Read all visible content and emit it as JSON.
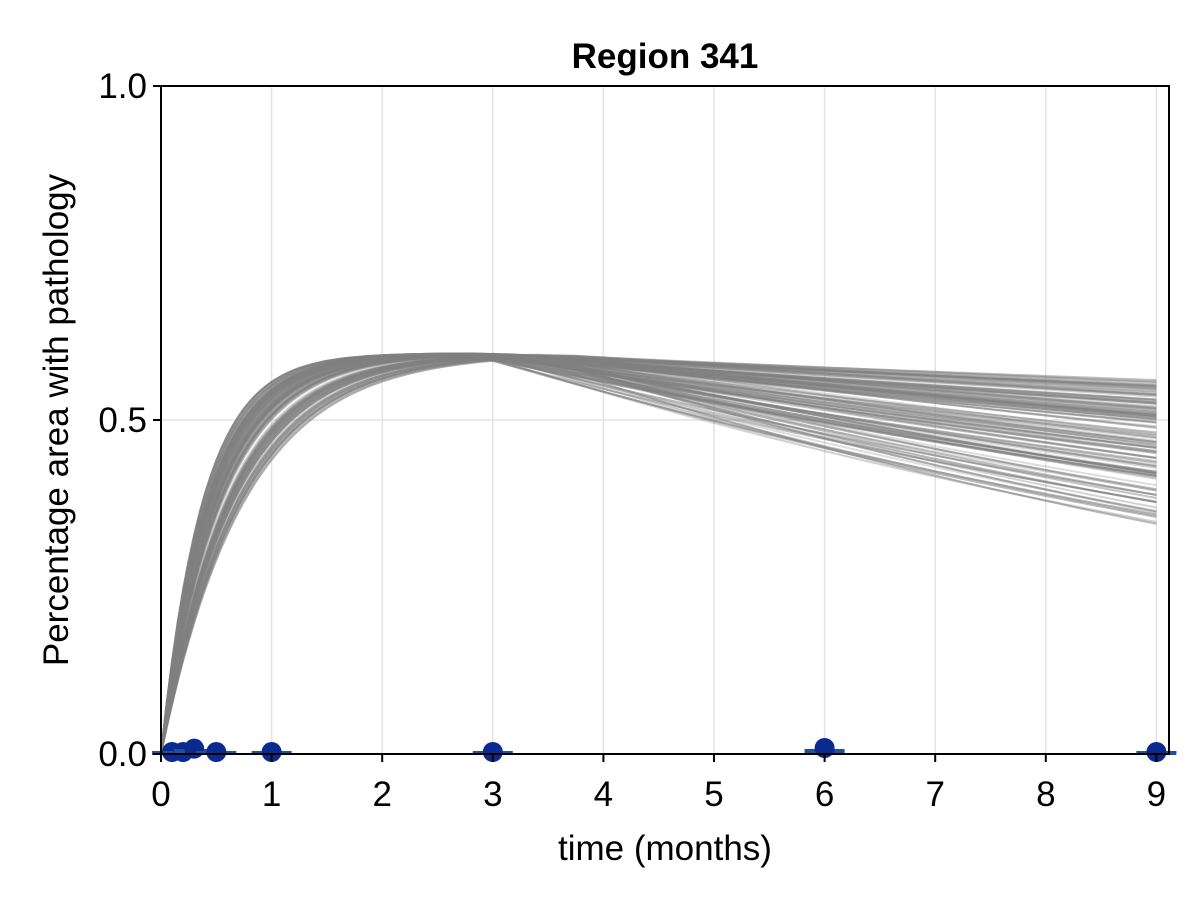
{
  "chart_data": {
    "type": "line",
    "title": "Region 341",
    "xlabel": "time (months)",
    "ylabel": "Percentage area with pathology",
    "xlim": [
      0,
      9
    ],
    "ylim": [
      0,
      1
    ],
    "xticks": [
      "0",
      "1",
      "2",
      "3",
      "4",
      "5",
      "6",
      "7",
      "8",
      "9"
    ],
    "yticks": [
      "0.0",
      "0.5",
      "1.0"
    ],
    "grid": true,
    "legend": "none",
    "colors": {
      "trajectory": "#808080",
      "observation": "#0b2a8f",
      "errorbar": "#1f4fa0"
    },
    "trajectory_band": {
      "description_count": 120,
      "plateau": 0.6,
      "rise_rate_range": [
        1.2,
        2.4
      ],
      "value_at_9_range": [
        0.34,
        0.56
      ]
    },
    "observations": {
      "x": [
        0.1,
        0.2,
        0.3,
        0.5,
        1,
        3,
        6,
        9
      ],
      "y": [
        0.0,
        0.0,
        0.005,
        0.0,
        0.0,
        0.0,
        0.006,
        0.0
      ],
      "err": [
        0.001,
        0.001,
        0.002,
        0.001,
        0.001,
        0.001,
        0.003,
        0.001
      ]
    }
  }
}
